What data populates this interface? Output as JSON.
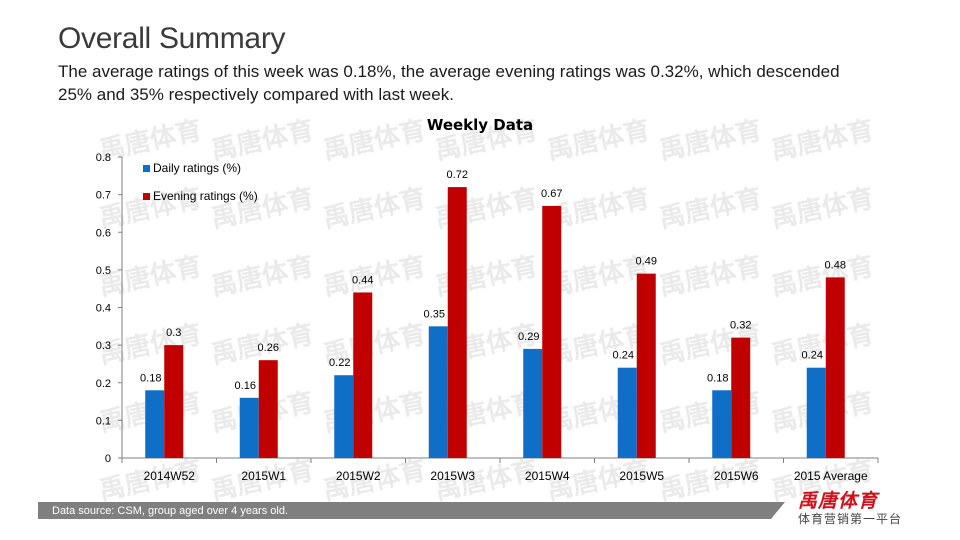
{
  "slide": {
    "title": "Overall Summary",
    "subtitle": "The average ratings of this week was 0.18%, the average evening ratings was 0.32%, which descended 25% and 35% respectively compared with last week."
  },
  "footer": {
    "source": "Data source: CSM, group aged over 4 years old."
  },
  "logo": {
    "name": "禹唐体育",
    "tagline": "体育营销第一平台"
  },
  "watermark": "禹唐体育",
  "colors": {
    "daily": "#0f6fc6",
    "evening": "#c00000",
    "axis": "#808080",
    "text": "#1a1a1a"
  },
  "chart_data": {
    "type": "bar",
    "title": "Weekly Data",
    "categories": [
      "2014W52",
      "2015W1",
      "2015W2",
      "2015W3",
      "2015W4",
      "2015W5",
      "2015W6",
      "2015 Average"
    ],
    "series": [
      {
        "name": "Daily ratings (%)",
        "values": [
          0.18,
          0.16,
          0.22,
          0.35,
          0.29,
          0.24,
          0.18,
          0.24
        ],
        "labels": [
          "0.18",
          "0.16",
          "0.22",
          "0.35",
          "0.29",
          "0.24",
          "0.18",
          "0.24"
        ]
      },
      {
        "name": "Evening ratings (%)",
        "values": [
          0.3,
          0.26,
          0.44,
          0.72,
          0.67,
          0.49,
          0.32,
          0.48
        ],
        "labels": [
          "0.3",
          "0.26",
          "0.44",
          "0.72",
          "0.67",
          "0.49",
          "0.32",
          "0.48"
        ]
      }
    ],
    "ylim": [
      0,
      0.8
    ],
    "yticks": [
      0,
      0.1,
      0.2,
      0.3,
      0.4,
      0.5,
      0.6,
      0.7,
      0.8
    ],
    "ytick_labels": [
      "0",
      "0.1",
      "0.2",
      "0.3",
      "0.4",
      "0.5",
      "0.6",
      "0.7",
      "0.8"
    ],
    "xlabel": "",
    "ylabel": "",
    "legend": "top-left"
  }
}
